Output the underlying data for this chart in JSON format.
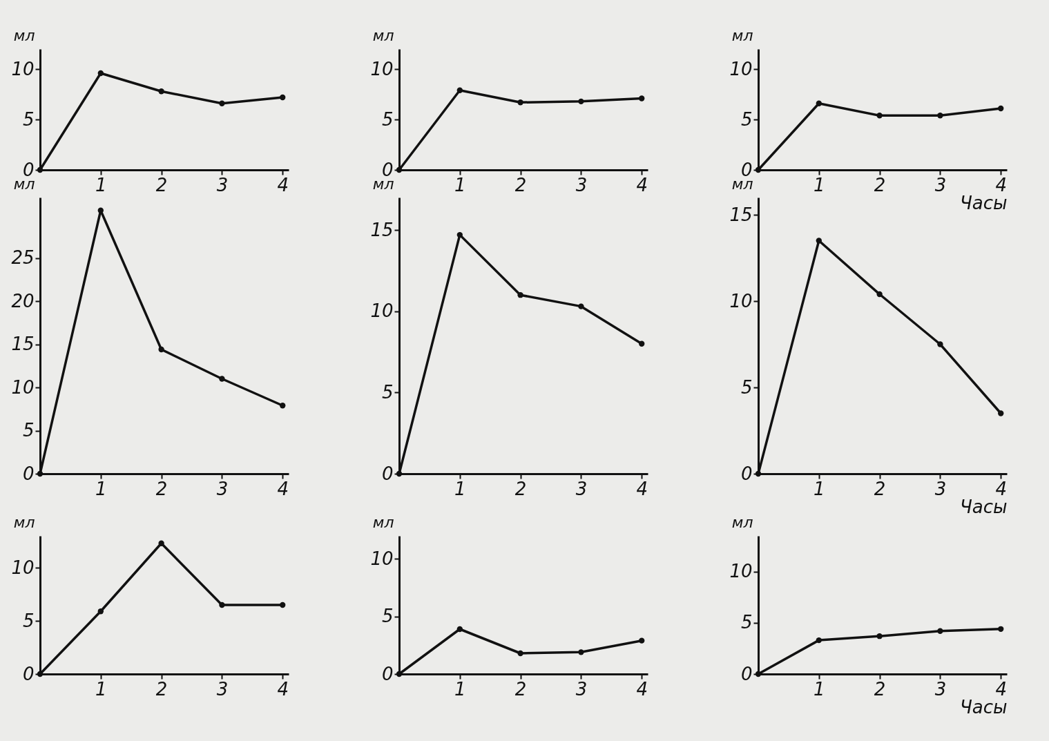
{
  "chart_data": [
    {
      "type": "line",
      "x": [
        0,
        1,
        2,
        3,
        4
      ],
      "xlim": [
        0,
        4.1
      ],
      "xticks": [
        1,
        2,
        3,
        4
      ],
      "ylim": [
        0,
        12
      ],
      "yticks": [
        0,
        5,
        10
      ],
      "ylabel": "мл",
      "marker": "circle",
      "grid": false,
      "series": [
        {
          "color": "#111111",
          "values": [
            0,
            9.6,
            7.8,
            6.6,
            7.2
          ]
        }
      ]
    },
    {
      "type": "line",
      "x": [
        0,
        1,
        2,
        3,
        4
      ],
      "xlim": [
        0,
        4.1
      ],
      "xticks": [
        1,
        2,
        3,
        4
      ],
      "ylim": [
        0,
        12
      ],
      "yticks": [
        0,
        5,
        10
      ],
      "ylabel": "мл",
      "marker": "circle",
      "grid": false,
      "series": [
        {
          "color": "#111111",
          "values": [
            0,
            7.9,
            6.7,
            6.8,
            7.1
          ]
        }
      ]
    },
    {
      "type": "line",
      "x": [
        0,
        1,
        2,
        3,
        4
      ],
      "xlim": [
        0,
        4.1
      ],
      "xticks": [
        1,
        2,
        3,
        4
      ],
      "ylim": [
        0,
        12
      ],
      "yticks": [
        0,
        5,
        10
      ],
      "ylabel": "мл",
      "xlabel": "Часы",
      "marker": "circle",
      "grid": false,
      "series": [
        {
          "color": "#111111",
          "values": [
            0,
            6.6,
            5.4,
            5.4,
            6.1
          ]
        }
      ]
    },
    {
      "type": "line",
      "x": [
        0,
        1,
        2,
        3,
        4
      ],
      "xlim": [
        0,
        4.1
      ],
      "xticks": [
        1,
        2,
        3,
        4
      ],
      "ylim": [
        0,
        32
      ],
      "yticks": [
        0,
        5,
        10,
        15,
        20,
        25
      ],
      "ylabel": "мл",
      "marker": "circle",
      "grid": false,
      "series": [
        {
          "color": "#111111",
          "values": [
            0,
            30.5,
            14.4,
            11.0,
            7.9
          ]
        }
      ]
    },
    {
      "type": "line",
      "x": [
        0,
        1,
        2,
        3,
        4
      ],
      "xlim": [
        0,
        4.1
      ],
      "xticks": [
        1,
        2,
        3,
        4
      ],
      "ylim": [
        0,
        17
      ],
      "yticks": [
        0,
        5,
        10,
        15
      ],
      "ylabel": "мл",
      "marker": "circle",
      "grid": false,
      "series": [
        {
          "color": "#111111",
          "values": [
            0,
            14.7,
            11.0,
            10.3,
            8.0
          ]
        }
      ]
    },
    {
      "type": "line",
      "x": [
        0,
        1,
        2,
        3,
        4
      ],
      "xlim": [
        0,
        4.1
      ],
      "xticks": [
        1,
        2,
        3,
        4
      ],
      "ylim": [
        0,
        16
      ],
      "yticks": [
        0,
        5,
        10,
        15
      ],
      "ylabel": "мл",
      "xlabel": "Часы",
      "marker": "circle",
      "grid": false,
      "series": [
        {
          "color": "#111111",
          "values": [
            0,
            13.5,
            10.4,
            7.5,
            3.5
          ]
        }
      ]
    },
    {
      "type": "line",
      "x": [
        0,
        1,
        2,
        3,
        4
      ],
      "xlim": [
        0,
        4.1
      ],
      "xticks": [
        1,
        2,
        3,
        4
      ],
      "ylim": [
        0,
        13
      ],
      "yticks": [
        0,
        5,
        10
      ],
      "ylabel": "мл",
      "marker": "circle",
      "grid": false,
      "series": [
        {
          "color": "#111111",
          "values": [
            0,
            5.9,
            12.3,
            6.5,
            6.5
          ]
        }
      ]
    },
    {
      "type": "line",
      "x": [
        0,
        1,
        2,
        3,
        4
      ],
      "xlim": [
        0,
        4.1
      ],
      "xticks": [
        1,
        2,
        3,
        4
      ],
      "ylim": [
        0,
        12
      ],
      "yticks": [
        0,
        5,
        10
      ],
      "ylabel": "мл",
      "marker": "circle",
      "grid": false,
      "series": [
        {
          "color": "#111111",
          "values": [
            0,
            3.9,
            1.8,
            1.9,
            2.9
          ]
        }
      ]
    },
    {
      "type": "line",
      "x": [
        0,
        1,
        2,
        3,
        4
      ],
      "xlim": [
        0,
        4.1
      ],
      "xticks": [
        1,
        2,
        3,
        4
      ],
      "ylim": [
        0,
        13.5
      ],
      "yticks": [
        0,
        5,
        10
      ],
      "ylabel": "мл",
      "xlabel": "Часы",
      "marker": "circle",
      "grid": false,
      "series": [
        {
          "color": "#111111",
          "values": [
            0,
            3.3,
            3.7,
            4.2,
            4.4
          ]
        }
      ]
    }
  ]
}
